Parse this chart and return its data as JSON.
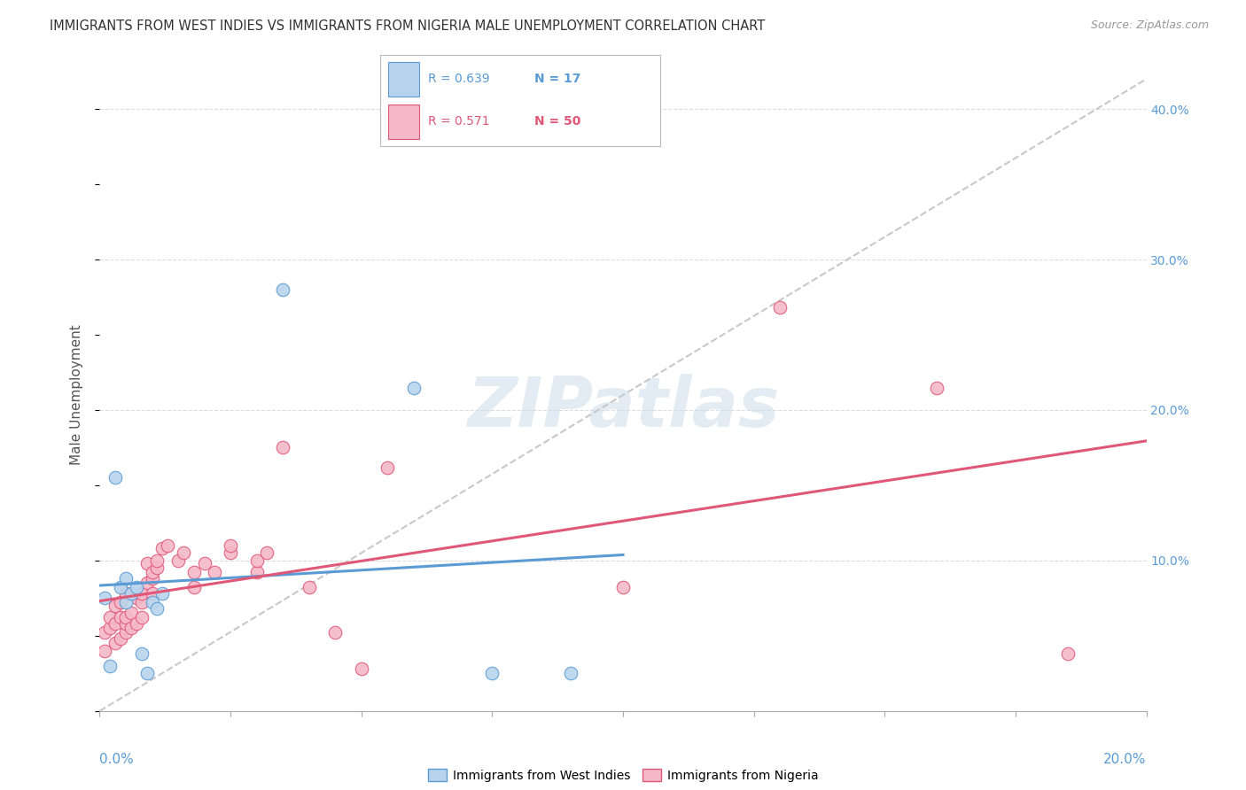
{
  "title": "IMMIGRANTS FROM WEST INDIES VS IMMIGRANTS FROM NIGERIA MALE UNEMPLOYMENT CORRELATION CHART",
  "source": "Source: ZipAtlas.com",
  "ylabel": "Male Unemployment",
  "west_indies_R": 0.639,
  "west_indies_N": 17,
  "nigeria_R": 0.571,
  "nigeria_N": 50,
  "west_indies_color": "#b8d4ed",
  "west_indies_line_color": "#5b9bd5",
  "nigeria_color": "#f4b8c8",
  "nigeria_line_color": "#e05878",
  "diagonal_color": "#c8c8c8",
  "background_color": "#ffffff",
  "grid_color": "#dddddd",
  "title_color": "#333333",
  "watermark": "ZIPatlas",
  "xlim": [
    0.0,
    0.2
  ],
  "ylim": [
    0.0,
    0.42
  ],
  "right_yticks": [
    0.1,
    0.2,
    0.3,
    0.4
  ],
  "right_yticklabels": [
    "10.0%",
    "20.0%",
    "30.0%",
    "40.0%"
  ],
  "west_indies_x": [
    0.001,
    0.002,
    0.003,
    0.004,
    0.005,
    0.005,
    0.006,
    0.007,
    0.008,
    0.009,
    0.01,
    0.011,
    0.012,
    0.035,
    0.06,
    0.075,
    0.09
  ],
  "west_indies_y": [
    0.075,
    0.03,
    0.155,
    0.082,
    0.088,
    0.072,
    0.078,
    0.082,
    0.038,
    0.025,
    0.072,
    0.068,
    0.078,
    0.28,
    0.215,
    0.025,
    0.025
  ],
  "nigeria_x": [
    0.001,
    0.001,
    0.002,
    0.002,
    0.003,
    0.003,
    0.003,
    0.004,
    0.004,
    0.004,
    0.005,
    0.005,
    0.005,
    0.005,
    0.006,
    0.006,
    0.007,
    0.007,
    0.008,
    0.008,
    0.008,
    0.009,
    0.009,
    0.01,
    0.01,
    0.01,
    0.011,
    0.011,
    0.012,
    0.013,
    0.015,
    0.016,
    0.018,
    0.018,
    0.02,
    0.022,
    0.025,
    0.025,
    0.03,
    0.03,
    0.032,
    0.035,
    0.04,
    0.045,
    0.05,
    0.055,
    0.1,
    0.13,
    0.16,
    0.185
  ],
  "nigeria_y": [
    0.04,
    0.052,
    0.055,
    0.062,
    0.045,
    0.058,
    0.07,
    0.048,
    0.062,
    0.072,
    0.052,
    0.058,
    0.062,
    0.078,
    0.055,
    0.065,
    0.058,
    0.075,
    0.062,
    0.072,
    0.078,
    0.085,
    0.098,
    0.078,
    0.088,
    0.092,
    0.095,
    0.1,
    0.108,
    0.11,
    0.1,
    0.105,
    0.082,
    0.092,
    0.098,
    0.092,
    0.105,
    0.11,
    0.092,
    0.1,
    0.105,
    0.175,
    0.082,
    0.052,
    0.028,
    0.162,
    0.082,
    0.268,
    0.215,
    0.038
  ]
}
